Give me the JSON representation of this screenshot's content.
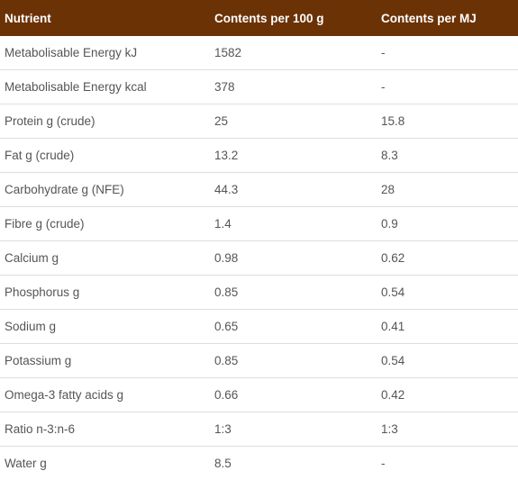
{
  "table": {
    "headers": [
      "Nutrient",
      "Contents per 100 g",
      "Contents per MJ"
    ],
    "rows": [
      [
        "Metabolisable Energy kJ",
        "1582",
        "-"
      ],
      [
        "Metabolisable Energy kcal",
        "378",
        "-"
      ],
      [
        "Protein g (crude)",
        "25",
        "15.8"
      ],
      [
        "Fat g (crude)",
        "13.2",
        "8.3"
      ],
      [
        "Carbohydrate g (NFE)",
        "44.3",
        "28"
      ],
      [
        "Fibre g (crude)",
        "1.4",
        "0.9"
      ],
      [
        "Calcium g",
        "0.98",
        "0.62"
      ],
      [
        "Phosphorus g",
        "0.85",
        "0.54"
      ],
      [
        "Sodium g",
        "0.65",
        "0.41"
      ],
      [
        "Potassium g",
        "0.85",
        "0.54"
      ],
      [
        "Omega-3 fatty acids g",
        "0.66",
        "0.42"
      ],
      [
        "Ratio n-3:n-6",
        "1:3",
        "1:3"
      ],
      [
        "Water g",
        "8.5",
        "-"
      ]
    ]
  },
  "colors": {
    "header_background": "#6b3206",
    "header_text": "#ffffff",
    "cell_text": "#555555",
    "row_divider": "#dedede"
  }
}
